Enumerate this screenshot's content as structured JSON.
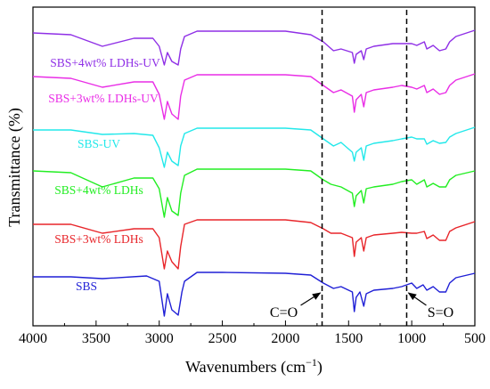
{
  "chart_data": {
    "type": "line",
    "xlabel": "Wavenumbers (cm",
    "xlabel_sup": "−1",
    "xlabel_close": ")",
    "ylabel": "Transmittance (%)",
    "xlim": [
      4000,
      500
    ],
    "x_reversed": true,
    "y_ticks_shown": false,
    "x_ticks": [
      "4000",
      "3500",
      "3000",
      "2500",
      "2000",
      "1500",
      "1000",
      "500"
    ],
    "annotations": [
      {
        "text": "C=O",
        "x": 1710
      },
      {
        "text": "S=O",
        "x": 1040
      }
    ],
    "series": [
      {
        "name": "SBS",
        "color": "#1f1fd6",
        "baseline": 310,
        "points": [
          [
            4000,
            1
          ],
          [
            3700,
            1
          ],
          [
            3450,
            3
          ],
          [
            3100,
            0
          ],
          [
            3000,
            6
          ],
          [
            2960,
            45
          ],
          [
            2935,
            20
          ],
          [
            2900,
            38
          ],
          [
            2850,
            44
          ],
          [
            2820,
            18
          ],
          [
            2800,
            6
          ],
          [
            2700,
            -4
          ],
          [
            2500,
            -4
          ],
          [
            2000,
            -3
          ],
          [
            1800,
            -1
          ],
          [
            1700,
            8
          ],
          [
            1620,
            14
          ],
          [
            1560,
            12
          ],
          [
            1470,
            18
          ],
          [
            1455,
            40
          ],
          [
            1440,
            24
          ],
          [
            1410,
            18
          ],
          [
            1380,
            34
          ],
          [
            1360,
            20
          ],
          [
            1300,
            16
          ],
          [
            1150,
            14
          ],
          [
            1080,
            12
          ],
          [
            1000,
            8
          ],
          [
            960,
            14
          ],
          [
            910,
            10
          ],
          [
            880,
            16
          ],
          [
            830,
            12
          ],
          [
            780,
            18
          ],
          [
            730,
            18
          ],
          [
            700,
            8
          ],
          [
            650,
            2
          ],
          [
            500,
            -3
          ]
        ]
      },
      {
        "name": "SBS+3wt% LDHs",
        "color": "#e8252a",
        "baseline": 252,
        "points": [
          [
            4000,
            0
          ],
          [
            3700,
            0
          ],
          [
            3450,
            10
          ],
          [
            3200,
            5
          ],
          [
            3050,
            5
          ],
          [
            3000,
            15
          ],
          [
            2960,
            50
          ],
          [
            2935,
            30
          ],
          [
            2900,
            42
          ],
          [
            2850,
            50
          ],
          [
            2830,
            25
          ],
          [
            2800,
            0
          ],
          [
            2700,
            -5
          ],
          [
            2500,
            -5
          ],
          [
            2000,
            -5
          ],
          [
            1800,
            -2
          ],
          [
            1700,
            5
          ],
          [
            1640,
            10
          ],
          [
            1560,
            10
          ],
          [
            1470,
            15
          ],
          [
            1455,
            36
          ],
          [
            1440,
            20
          ],
          [
            1400,
            15
          ],
          [
            1380,
            30
          ],
          [
            1360,
            15
          ],
          [
            1300,
            12
          ],
          [
            1150,
            10
          ],
          [
            1080,
            9
          ],
          [
            1000,
            10
          ],
          [
            960,
            10
          ],
          [
            900,
            8
          ],
          [
            880,
            16
          ],
          [
            830,
            12
          ],
          [
            780,
            18
          ],
          [
            730,
            18
          ],
          [
            700,
            8
          ],
          [
            650,
            4
          ],
          [
            500,
            -3
          ]
        ]
      },
      {
        "name": "SBS+4wt% LDHs",
        "color": "#22ee22",
        "baseline": 192,
        "points": [
          [
            4000,
            0
          ],
          [
            3700,
            2
          ],
          [
            3450,
            18
          ],
          [
            3200,
            8
          ],
          [
            3050,
            8
          ],
          [
            3000,
            20
          ],
          [
            2960,
            52
          ],
          [
            2935,
            30
          ],
          [
            2900,
            45
          ],
          [
            2850,
            50
          ],
          [
            2830,
            25
          ],
          [
            2800,
            5
          ],
          [
            2700,
            -2
          ],
          [
            2500,
            -2
          ],
          [
            2000,
            -2
          ],
          [
            1800,
            0
          ],
          [
            1700,
            10
          ],
          [
            1640,
            15
          ],
          [
            1560,
            18
          ],
          [
            1470,
            25
          ],
          [
            1455,
            40
          ],
          [
            1440,
            28
          ],
          [
            1400,
            22
          ],
          [
            1380,
            36
          ],
          [
            1360,
            20
          ],
          [
            1300,
            18
          ],
          [
            1150,
            15
          ],
          [
            1080,
            12
          ],
          [
            1000,
            10
          ],
          [
            960,
            15
          ],
          [
            900,
            10
          ],
          [
            880,
            18
          ],
          [
            830,
            14
          ],
          [
            780,
            18
          ],
          [
            730,
            18
          ],
          [
            700,
            10
          ],
          [
            650,
            5
          ],
          [
            500,
            0
          ]
        ]
      },
      {
        "name": "SBS-UV",
        "color": "#22e8ea",
        "baseline": 146,
        "points": [
          [
            4000,
            0
          ],
          [
            3700,
            0
          ],
          [
            3450,
            5
          ],
          [
            3200,
            4
          ],
          [
            3050,
            6
          ],
          [
            3000,
            20
          ],
          [
            2960,
            42
          ],
          [
            2935,
            25
          ],
          [
            2900,
            35
          ],
          [
            2850,
            40
          ],
          [
            2830,
            18
          ],
          [
            2800,
            4
          ],
          [
            2700,
            -2
          ],
          [
            2500,
            -2
          ],
          [
            2000,
            -2
          ],
          [
            1800,
            0
          ],
          [
            1700,
            10
          ],
          [
            1620,
            18
          ],
          [
            1560,
            14
          ],
          [
            1470,
            25
          ],
          [
            1455,
            35
          ],
          [
            1440,
            25
          ],
          [
            1400,
            20
          ],
          [
            1380,
            34
          ],
          [
            1360,
            18
          ],
          [
            1300,
            15
          ],
          [
            1150,
            12
          ],
          [
            1080,
            10
          ],
          [
            1000,
            8
          ],
          [
            960,
            10
          ],
          [
            900,
            10
          ],
          [
            880,
            16
          ],
          [
            830,
            12
          ],
          [
            780,
            15
          ],
          [
            730,
            14
          ],
          [
            700,
            8
          ],
          [
            650,
            4
          ],
          [
            500,
            -3
          ]
        ]
      },
      {
        "name": "SBS+3wt% LDHs-UV",
        "color": "#e92de6",
        "baseline": 86,
        "points": [
          [
            4000,
            0
          ],
          [
            3700,
            2
          ],
          [
            3450,
            12
          ],
          [
            3200,
            6
          ],
          [
            3050,
            6
          ],
          [
            3000,
            20
          ],
          [
            2960,
            48
          ],
          [
            2935,
            28
          ],
          [
            2900,
            42
          ],
          [
            2850,
            48
          ],
          [
            2830,
            22
          ],
          [
            2800,
            4
          ],
          [
            2700,
            -2
          ],
          [
            2500,
            -2
          ],
          [
            2000,
            -2
          ],
          [
            1800,
            0
          ],
          [
            1700,
            10
          ],
          [
            1620,
            18
          ],
          [
            1560,
            15
          ],
          [
            1470,
            22
          ],
          [
            1455,
            40
          ],
          [
            1440,
            26
          ],
          [
            1400,
            20
          ],
          [
            1380,
            34
          ],
          [
            1360,
            18
          ],
          [
            1300,
            15
          ],
          [
            1150,
            12
          ],
          [
            1080,
            10
          ],
          [
            1000,
            12
          ],
          [
            960,
            14
          ],
          [
            900,
            10
          ],
          [
            880,
            18
          ],
          [
            830,
            14
          ],
          [
            780,
            20
          ],
          [
            730,
            18
          ],
          [
            700,
            10
          ],
          [
            650,
            4
          ],
          [
            500,
            -3
          ]
        ]
      },
      {
        "name": "SBS+4wt% LDHs-UV",
        "color": "#8f2fe6",
        "baseline": 37,
        "points": [
          [
            4000,
            0
          ],
          [
            3700,
            2
          ],
          [
            3450,
            15
          ],
          [
            3200,
            6
          ],
          [
            3050,
            6
          ],
          [
            3000,
            15
          ],
          [
            2960,
            36
          ],
          [
            2935,
            22
          ],
          [
            2900,
            32
          ],
          [
            2850,
            36
          ],
          [
            2830,
            18
          ],
          [
            2800,
            4
          ],
          [
            2700,
            -2
          ],
          [
            2500,
            -2
          ],
          [
            2000,
            -2
          ],
          [
            1800,
            2
          ],
          [
            1700,
            10
          ],
          [
            1620,
            20
          ],
          [
            1560,
            18
          ],
          [
            1470,
            22
          ],
          [
            1455,
            34
          ],
          [
            1440,
            24
          ],
          [
            1400,
            20
          ],
          [
            1380,
            30
          ],
          [
            1360,
            18
          ],
          [
            1300,
            15
          ],
          [
            1150,
            12
          ],
          [
            1080,
            12
          ],
          [
            1000,
            12
          ],
          [
            960,
            14
          ],
          [
            900,
            10
          ],
          [
            880,
            18
          ],
          [
            830,
            14
          ],
          [
            780,
            20
          ],
          [
            730,
            18
          ],
          [
            700,
            10
          ],
          [
            650,
            4
          ],
          [
            500,
            -3
          ]
        ]
      }
    ]
  }
}
